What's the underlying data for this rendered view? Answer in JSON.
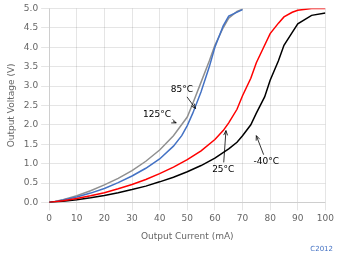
{
  "chart_data": {
    "type": "line",
    "xlabel": "Output Current (mA)",
    "ylabel": "Output Voltage (V)",
    "xlim": [
      0,
      100
    ],
    "ylim": [
      0,
      5
    ],
    "xticks": [
      0,
      10,
      20,
      30,
      40,
      50,
      60,
      70,
      80,
      90,
      100
    ],
    "yticks": [
      {
        "value": 0,
        "label": "0.0"
      },
      {
        "value": 0.5,
        "label": "0.5"
      },
      {
        "value": 1.0,
        "label": "1.0"
      },
      {
        "value": 1.5,
        "label": "1.5"
      },
      {
        "value": 2.0,
        "label": "2.0"
      },
      {
        "value": 2.5,
        "label": "2.5"
      },
      {
        "value": 3.0,
        "label": "3.0"
      },
      {
        "value": 3.5,
        "label": "3.5"
      },
      {
        "value": 4.0,
        "label": "4.0"
      },
      {
        "value": 4.5,
        "label": "4.5"
      },
      {
        "value": 5.0,
        "label": "5.0"
      }
    ],
    "grid": true,
    "series": [
      {
        "color": "#FF0000",
        "x": [
          0,
          2,
          5,
          10,
          15,
          20,
          25,
          30,
          35,
          40,
          45,
          50,
          55,
          60,
          63,
          65,
          68,
          70,
          73,
          75,
          78,
          80,
          83,
          85,
          88,
          90,
          95,
          100
        ],
        "values": [
          0,
          0.015,
          0.04,
          0.1,
          0.17,
          0.25,
          0.35,
          0.46,
          0.59,
          0.74,
          0.91,
          1.1,
          1.33,
          1.62,
          1.85,
          2.05,
          2.4,
          2.75,
          3.2,
          3.6,
          4.05,
          4.35,
          4.62,
          4.78,
          4.9,
          4.95,
          5.0,
          5.0
        ]
      },
      {
        "color": "#000000",
        "x": [
          0,
          2,
          5,
          10,
          15,
          20,
          25,
          30,
          35,
          40,
          45,
          50,
          55,
          60,
          65,
          68,
          70,
          73,
          75,
          78,
          80,
          83,
          85,
          88,
          90,
          95,
          100
        ],
        "values": [
          0,
          0.012,
          0.03,
          0.07,
          0.12,
          0.18,
          0.25,
          0.33,
          0.42,
          0.53,
          0.65,
          0.79,
          0.95,
          1.14,
          1.38,
          1.55,
          1.72,
          2.0,
          2.3,
          2.72,
          3.15,
          3.65,
          4.05,
          4.38,
          4.6,
          4.82,
          4.88
        ]
      },
      {
        "color": "#4472C4",
        "x": [
          0,
          2,
          5,
          10,
          15,
          20,
          25,
          30,
          35,
          40,
          45,
          48,
          50,
          52,
          55,
          58,
          60,
          63,
          65,
          70
        ],
        "values": [
          0,
          0.02,
          0.06,
          0.14,
          0.24,
          0.36,
          0.51,
          0.68,
          0.88,
          1.12,
          1.45,
          1.72,
          1.98,
          2.3,
          2.85,
          3.5,
          4.0,
          4.55,
          4.8,
          4.97
        ]
      },
      {
        "color": "#909090",
        "x": [
          0,
          2,
          5,
          10,
          15,
          20,
          25,
          30,
          35,
          40,
          45,
          50,
          52,
          55,
          58,
          60,
          63,
          65,
          68,
          70
        ],
        "values": [
          0,
          0.025,
          0.07,
          0.17,
          0.3,
          0.45,
          0.62,
          0.82,
          1.06,
          1.35,
          1.72,
          2.2,
          2.55,
          3.1,
          3.65,
          4.05,
          4.5,
          4.75,
          4.92,
          4.98
        ]
      }
    ],
    "annotations": [
      {
        "text": "85°C",
        "xy": [
          53,
          2.42
        ],
        "xytext": [
          44,
          2.9
        ]
      },
      {
        "text": "125°C",
        "xy": [
          46,
          2.05
        ],
        "xytext": [
          34,
          2.25
        ]
      },
      {
        "text": "25°C",
        "xy": [
          64,
          1.85
        ],
        "xytext": [
          59,
          0.85
        ]
      },
      {
        "text": "-40°C",
        "xy": [
          75,
          1.72
        ],
        "xytext": [
          74,
          1.05
        ]
      }
    ],
    "watermark": "C2012"
  }
}
